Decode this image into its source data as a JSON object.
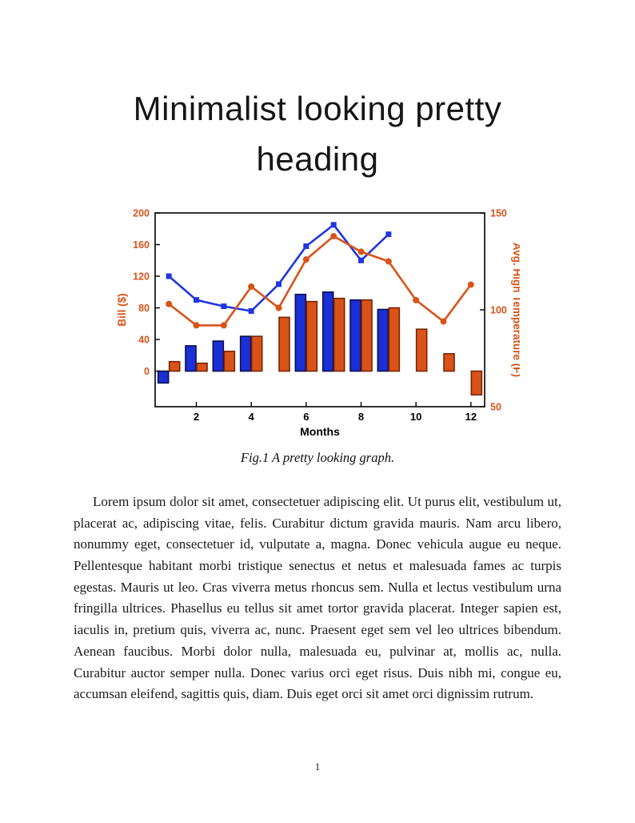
{
  "page": {
    "heading": "Minimalist looking pretty heading",
    "figure_caption": "Fig.1 A pretty looking graph.",
    "body_paragraph": "Lorem ipsum dolor sit amet, consectetuer adipiscing elit. Ut purus elit, vestibulum ut, placerat ac, adipiscing vitae, felis. Curabitur dictum gravida mauris. Nam arcu libero, nonummy eget, consectetuer id, vulputate a, magna. Donec vehicula augue eu neque. Pellentesque habitant morbi tristique senectus et netus et malesuada fames ac turpis egestas. Mauris ut leo. Cras viverra metus rhoncus sem. Nulla et lectus vestibulum urna fringilla ultrices. Phasellus eu tellus sit amet tortor gravida placerat. Integer sapien est, iaculis in, pretium quis, viverra ac, nunc. Praesent eget sem vel leo ultrices bibendum. Aenean faucibus. Morbi dolor nulla, malesuada eu, pulvinar at, mollis ac, nulla. Curabitur auctor semper nulla. Donec varius orci eget risus. Duis nibh mi, congue eu, accumsan eleifend, sagittis quis, diam. Duis eget orci sit amet orci dignissim rutrum.",
    "page_number": "1"
  },
  "chart_data": {
    "type": "bar",
    "subtype": "grouped-bars-with-overlay-lines-dual-axis",
    "x": [
      1,
      2,
      3,
      4,
      5,
      6,
      7,
      8,
      9,
      10,
      11,
      12
    ],
    "x_ticks": [
      2,
      4,
      6,
      8,
      10,
      12
    ],
    "xlabel": "Months",
    "grid": false,
    "legend": "none",
    "frame_color": "#000000",
    "left_axis": {
      "label": "Bill ($)",
      "ticks": [
        0,
        40,
        80,
        120,
        160,
        200
      ],
      "range": [
        -45,
        200
      ],
      "color": "#d95319"
    },
    "right_axis": {
      "label": "Avg. High Temperature (F)",
      "ticks": [
        50,
        100,
        150
      ],
      "range": [
        50,
        150
      ],
      "color": "#d95319"
    },
    "series": [
      {
        "name": "bill-blue-bars",
        "kind": "bar",
        "axis": "left",
        "color": "#1b2fd6",
        "edge": "#0a0f50",
        "values": [
          -15,
          32,
          38,
          44,
          null,
          97,
          100,
          90,
          78,
          null,
          null,
          null
        ]
      },
      {
        "name": "bill-orange-bars",
        "kind": "bar",
        "axis": "left",
        "color": "#d95319",
        "edge": "#7a2402",
        "values": [
          12,
          10,
          25,
          44,
          68,
          88,
          92,
          90,
          80,
          53,
          22,
          -30
        ]
      },
      {
        "name": "blue-line-squares",
        "kind": "line",
        "axis": "left",
        "marker": "square",
        "color": "#2036e0",
        "values": [
          120,
          90,
          82,
          76,
          110,
          158,
          185,
          140,
          173,
          null,
          null,
          null
        ]
      },
      {
        "name": "orange-line-circles",
        "kind": "line",
        "axis": "right",
        "marker": "circle",
        "color": "#d95319",
        "values": [
          103,
          92,
          92,
          112,
          101,
          126,
          138,
          130,
          125,
          105,
          94,
          113
        ]
      }
    ]
  }
}
